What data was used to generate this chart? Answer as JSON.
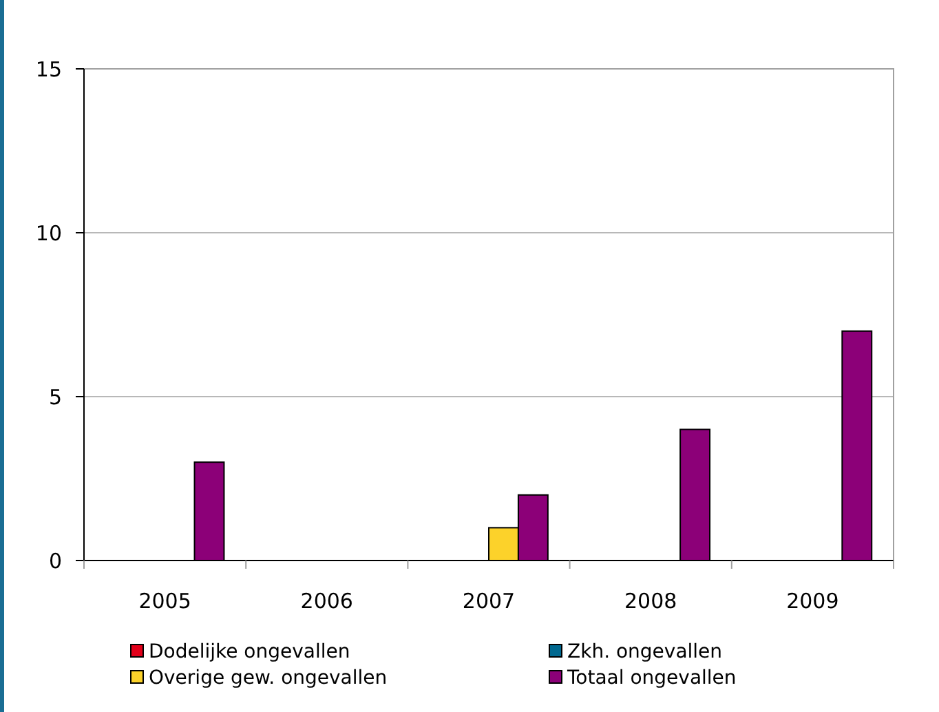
{
  "chart_data": {
    "type": "bar",
    "categories": [
      "2005",
      "2006",
      "2007",
      "2008",
      "2009"
    ],
    "series": [
      {
        "name": "Dodelijke ongevallen",
        "color": "#e2001a",
        "values": [
          0,
          0,
          0,
          0,
          0
        ]
      },
      {
        "name": "Zkh. ongevallen",
        "color": "#00688f",
        "values": [
          0,
          0,
          0,
          0,
          0
        ]
      },
      {
        "name": "Overige gew. ongevallen",
        "color": "#fcd22a",
        "values": [
          0,
          0,
          1,
          0,
          0
        ]
      },
      {
        "name": "Totaal ongevallen",
        "color": "#8c0078",
        "values": [
          3,
          0,
          2,
          4,
          7
        ]
      }
    ],
    "ylim": [
      0,
      15
    ],
    "yticks": [
      0,
      5,
      10,
      15
    ],
    "grid": "y",
    "legend": "bottom"
  }
}
